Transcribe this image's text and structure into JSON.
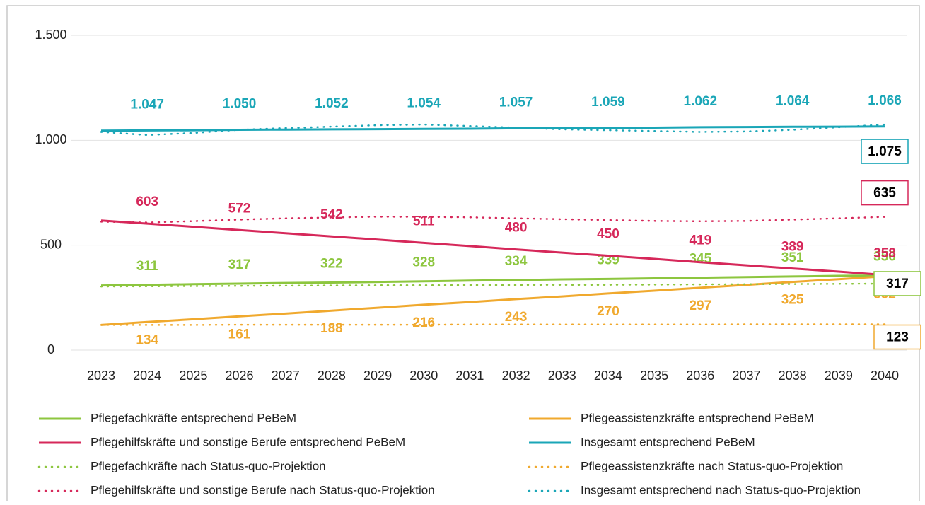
{
  "chart_data": {
    "type": "line",
    "x": [
      2023,
      2024,
      2025,
      2026,
      2027,
      2028,
      2029,
      2030,
      2031,
      2032,
      2033,
      2034,
      2035,
      2036,
      2037,
      2038,
      2039,
      2040
    ],
    "ylim": [
      0,
      1500
    ],
    "yticks": [
      0,
      500,
      {
        "value": 1000,
        "label": "1.000"
      },
      {
        "value": 1500,
        "label": "1.500"
      }
    ],
    "grid": true,
    "series": [
      {
        "name": "Pflegefachkräfte entsprechend PeBeM",
        "color": "#8dc63f",
        "style": "solid",
        "values": [
          308,
          311,
          314,
          317,
          320,
          322,
          325,
          328,
          331,
          334,
          337,
          339,
          342,
          345,
          348,
          351,
          354,
          356
        ],
        "value_labels": [
          null,
          "311",
          null,
          "317",
          null,
          "322",
          null,
          "328",
          null,
          "334",
          null,
          "339",
          null,
          "345",
          null,
          "351",
          null,
          "356"
        ]
      },
      {
        "name": "Pflegeassistenzkräfte entsprechend PeBeM",
        "color": "#f0a92e",
        "style": "solid",
        "values": [
          120,
          134,
          147,
          161,
          174,
          188,
          202,
          216,
          229,
          243,
          256,
          270,
          283,
          297,
          311,
          325,
          338,
          352
        ],
        "value_labels": [
          null,
          "134",
          null,
          "161",
          null,
          "188",
          null,
          "216",
          null,
          "243",
          null,
          "270",
          null,
          "297",
          null,
          "325",
          null,
          "352"
        ]
      },
      {
        "name": "Pflegehilfskräfte und sonstige Berufe entsprechend PeBeM",
        "color": "#d6285a",
        "style": "solid",
        "values": [
          618,
          603,
          588,
          572,
          557,
          542,
          527,
          511,
          496,
          480,
          465,
          450,
          435,
          419,
          404,
          389,
          374,
          358
        ],
        "value_labels": [
          null,
          "603",
          null,
          "572",
          null,
          "542",
          null,
          "511",
          null,
          "480",
          null,
          "450",
          null,
          "419",
          null,
          "389",
          null,
          "358"
        ]
      },
      {
        "name": "Insgesamt entsprechend PeBeM",
        "color": "#1aa6b7",
        "style": "solid",
        "values": [
          1046,
          1047,
          1048,
          1050,
          1051,
          1052,
          1053,
          1054,
          1055,
          1057,
          1058,
          1059,
          1060,
          1062,
          1063,
          1064,
          1065,
          1066
        ],
        "value_labels": [
          null,
          "1.047",
          null,
          "1.050",
          null,
          "1.052",
          null,
          "1.054",
          null,
          "1.057",
          null,
          "1.059",
          null,
          "1.062",
          null,
          "1.064",
          null,
          "1.066"
        ]
      },
      {
        "name": "Pflegefachkräfte nach Status-quo-Projektion",
        "color": "#8dc63f",
        "style": "dotted",
        "values": [
          303,
          304,
          305,
          306,
          307,
          308,
          309,
          309,
          310,
          310,
          311,
          311,
          312,
          313,
          314,
          315,
          316,
          317
        ],
        "value_labels": [
          null,
          null,
          null,
          null,
          null,
          null,
          null,
          null,
          null,
          null,
          null,
          null,
          null,
          null,
          null,
          null,
          null,
          "317"
        ]
      },
      {
        "name": "Pflegeassistenzkräfte nach Status-quo-Projektion",
        "color": "#f0a92e",
        "style": "dotted",
        "values": [
          120,
          120,
          120,
          121,
          121,
          121,
          121,
          121,
          122,
          122,
          122,
          122,
          122,
          122,
          123,
          123,
          123,
          123
        ],
        "value_labels": [
          null,
          null,
          null,
          null,
          null,
          null,
          null,
          null,
          null,
          null,
          null,
          null,
          null,
          null,
          null,
          null,
          null,
          "123"
        ]
      },
      {
        "name": "Pflegehilfskräfte und sonstige Berufe nach Status-quo-Projektion",
        "color": "#d6285a",
        "style": "dotted",
        "values": [
          612,
          608,
          615,
          622,
          628,
          632,
          636,
          635,
          633,
          628,
          624,
          620,
          616,
          614,
          616,
          622,
          628,
          635
        ],
        "value_labels": [
          null,
          null,
          null,
          null,
          null,
          null,
          null,
          null,
          null,
          null,
          null,
          null,
          null,
          null,
          null,
          null,
          null,
          "635"
        ]
      },
      {
        "name": "Insgesamt entsprechend nach Status-quo-Projektion",
        "color": "#1aa6b7",
        "style": "dotted",
        "values": [
          1040,
          1025,
          1035,
          1050,
          1058,
          1065,
          1072,
          1075,
          1068,
          1060,
          1052,
          1048,
          1044,
          1040,
          1042,
          1050,
          1062,
          1075
        ],
        "value_labels": [
          null,
          null,
          null,
          null,
          null,
          null,
          null,
          null,
          null,
          null,
          null,
          null,
          null,
          null,
          null,
          null,
          null,
          "1.075"
        ]
      }
    ]
  }
}
